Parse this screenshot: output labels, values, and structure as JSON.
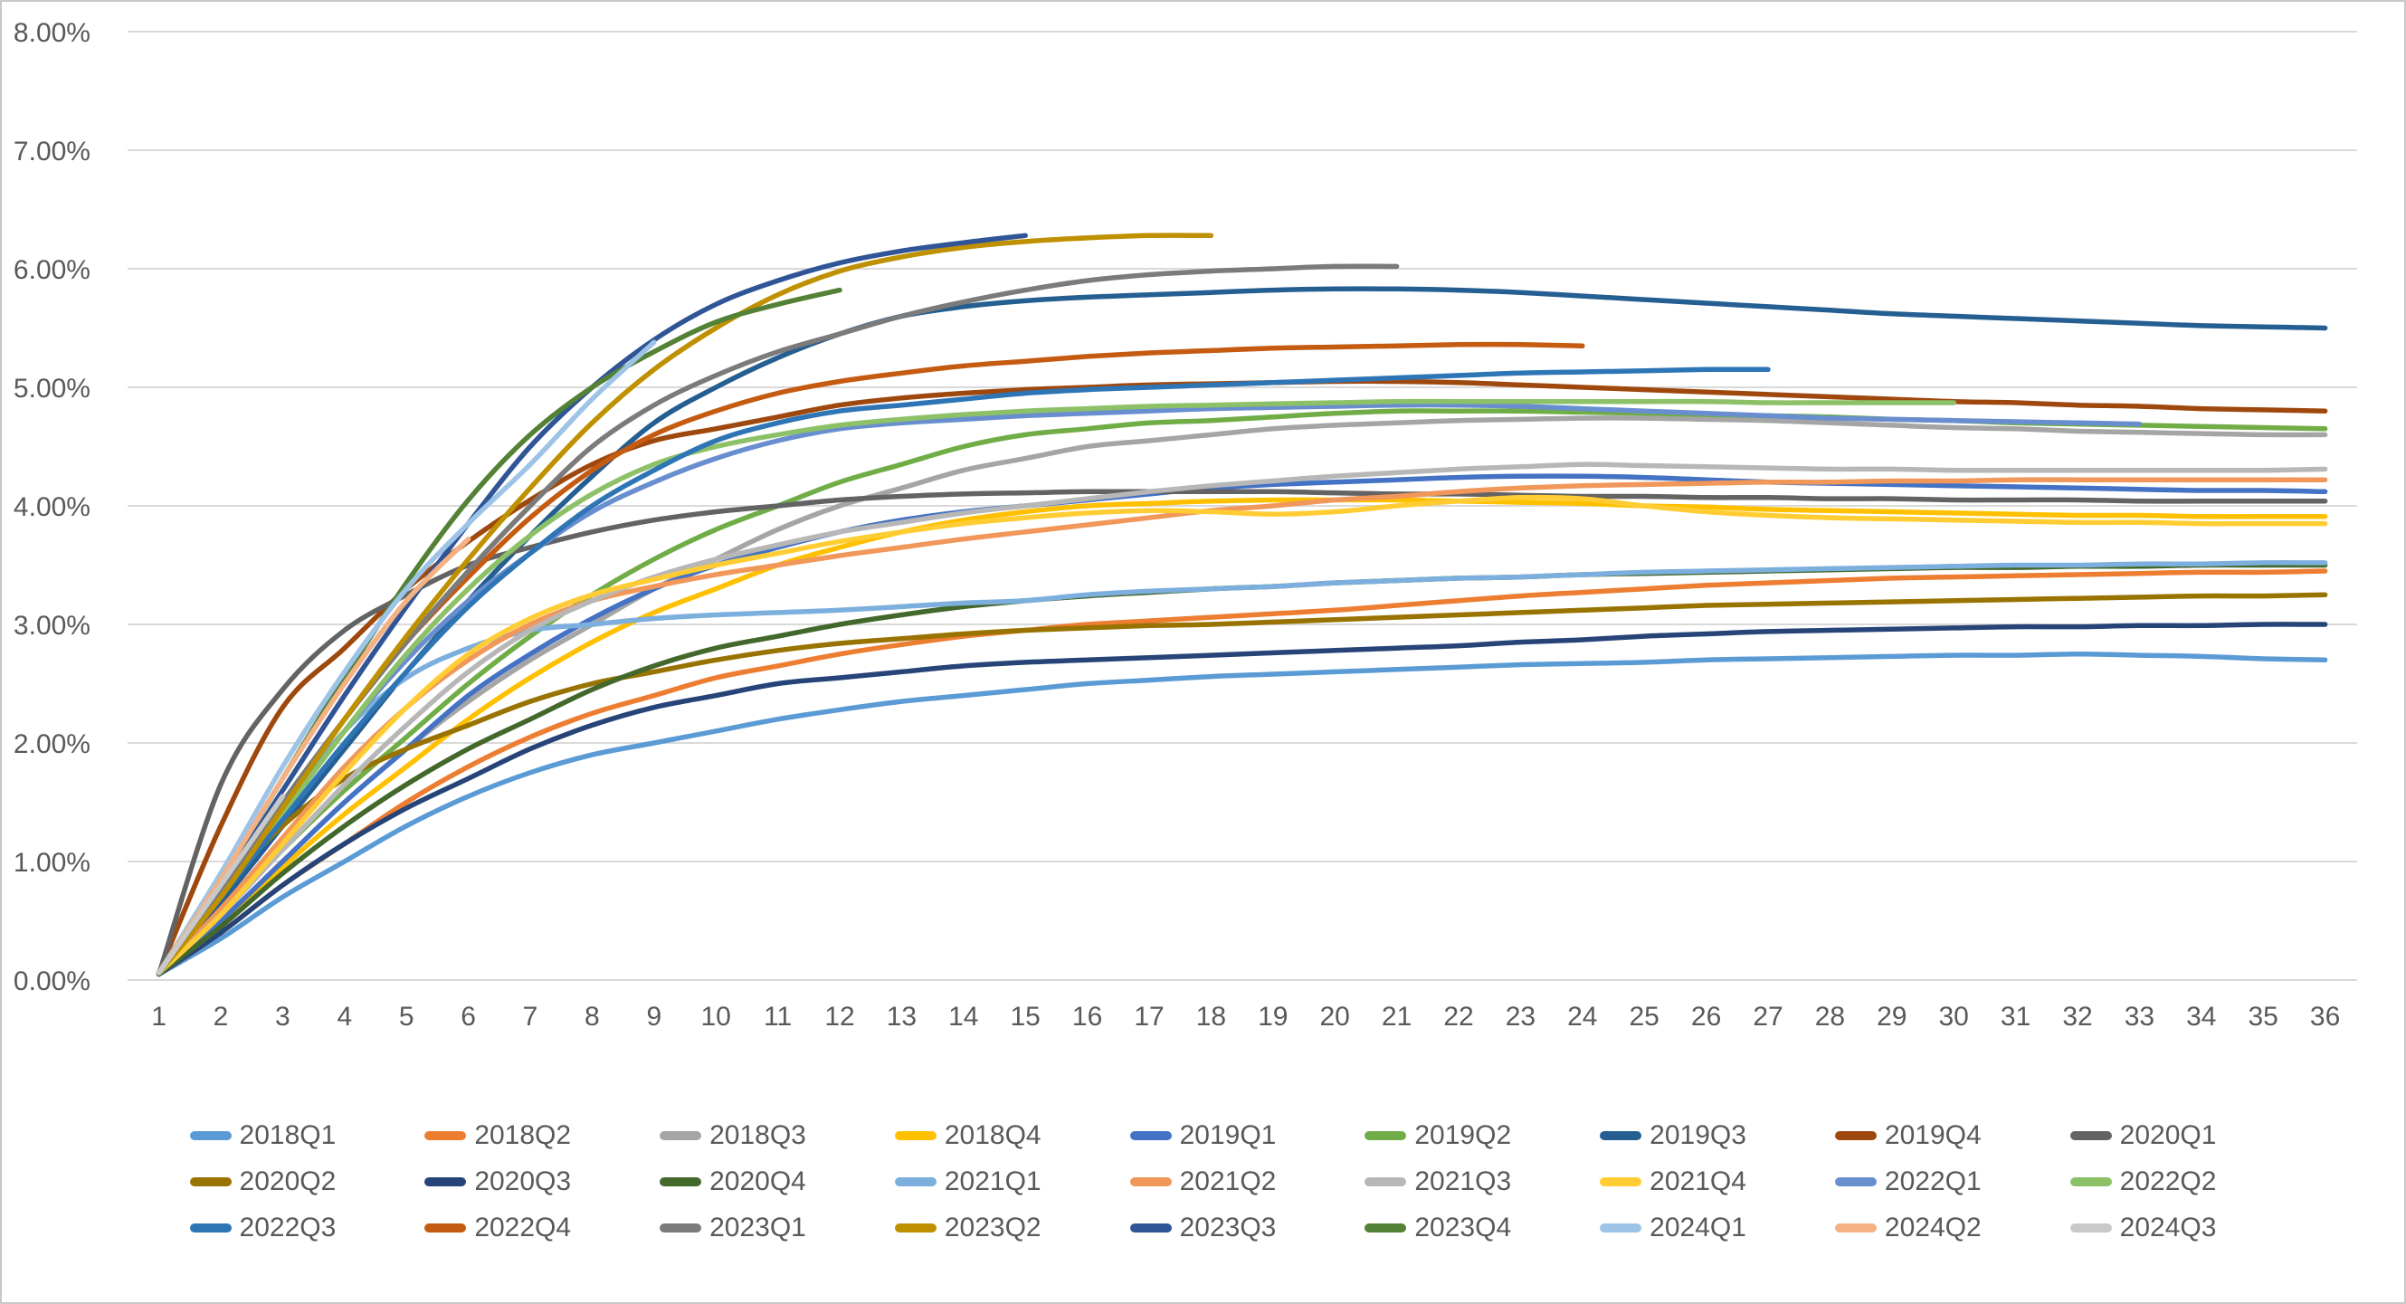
{
  "window": {
    "background": "#FFFFFF",
    "border_color": "#C8C8C8"
  },
  "chart_data": {
    "type": "line",
    "title": "",
    "xlabel": "",
    "ylabel": "",
    "x_start": 1,
    "x_ticks": [
      1,
      2,
      3,
      4,
      5,
      6,
      7,
      8,
      9,
      10,
      11,
      12,
      13,
      14,
      15,
      16,
      17,
      18,
      19,
      20,
      21,
      22,
      23,
      24,
      25,
      26,
      27,
      28,
      29,
      30,
      31,
      32,
      33,
      34,
      35,
      36
    ],
    "y_ticks": [
      "0.00%",
      "1.00%",
      "2.00%",
      "3.00%",
      "4.00%",
      "5.00%",
      "6.00%",
      "7.00%",
      "8.00%"
    ],
    "ylim": [
      0,
      8
    ],
    "grid": "horizontal",
    "gridline_color": "#D9D9D9",
    "axis_text_color": "#595959",
    "legend_position": "bottom",
    "legend_items_per_row": 9,
    "series": [
      {
        "name": "2018Q1",
        "color": "#5B9BD5",
        "values": [
          0.05,
          0.35,
          0.7,
          1.0,
          1.3,
          1.55,
          1.75,
          1.9,
          2.0,
          2.1,
          2.2,
          2.28,
          2.35,
          2.4,
          2.45,
          2.5,
          2.53,
          2.56,
          2.58,
          2.6,
          2.62,
          2.64,
          2.66,
          2.67,
          2.68,
          2.7,
          2.71,
          2.72,
          2.73,
          2.74,
          2.74,
          2.75,
          2.74,
          2.73,
          2.71,
          2.7
        ]
      },
      {
        "name": "2018Q2",
        "color": "#ED7D31",
        "values": [
          0.05,
          0.4,
          0.8,
          1.15,
          1.5,
          1.8,
          2.05,
          2.25,
          2.4,
          2.55,
          2.65,
          2.75,
          2.83,
          2.9,
          2.95,
          3.0,
          3.03,
          3.06,
          3.09,
          3.12,
          3.16,
          3.2,
          3.24,
          3.27,
          3.3,
          3.33,
          3.35,
          3.37,
          3.39,
          3.4,
          3.41,
          3.42,
          3.43,
          3.44,
          3.44,
          3.45
        ]
      },
      {
        "name": "2018Q3",
        "color": "#A5A5A5",
        "values": [
          0.05,
          0.5,
          1.0,
          1.5,
          1.95,
          2.35,
          2.7,
          3.0,
          3.3,
          3.55,
          3.8,
          4.0,
          4.15,
          4.3,
          4.4,
          4.5,
          4.55,
          4.6,
          4.65,
          4.68,
          4.7,
          4.72,
          4.73,
          4.74,
          4.74,
          4.73,
          4.72,
          4.7,
          4.68,
          4.66,
          4.65,
          4.63,
          4.62,
          4.61,
          4.6,
          4.6
        ]
      },
      {
        "name": "2018Q4",
        "color": "#FFC000",
        "values": [
          0.05,
          0.45,
          0.95,
          1.4,
          1.8,
          2.2,
          2.55,
          2.85,
          3.1,
          3.3,
          3.5,
          3.65,
          3.78,
          3.88,
          3.95,
          4.0,
          4.02,
          4.04,
          4.05,
          4.05,
          4.05,
          4.04,
          4.03,
          4.02,
          4.0,
          3.99,
          3.97,
          3.96,
          3.95,
          3.94,
          3.93,
          3.92,
          3.92,
          3.91,
          3.91,
          3.91
        ]
      },
      {
        "name": "2019Q1",
        "color": "#4472C4",
        "values": [
          0.05,
          0.5,
          1.0,
          1.5,
          1.95,
          2.4,
          2.75,
          3.05,
          3.3,
          3.5,
          3.65,
          3.78,
          3.88,
          3.95,
          4.0,
          4.05,
          4.1,
          4.15,
          4.18,
          4.2,
          4.22,
          4.24,
          4.25,
          4.25,
          4.24,
          4.22,
          4.2,
          4.19,
          4.18,
          4.17,
          4.16,
          4.15,
          4.14,
          4.13,
          4.13,
          4.12
        ]
      },
      {
        "name": "2019Q2",
        "color": "#70AD47",
        "values": [
          0.05,
          0.55,
          1.1,
          1.6,
          2.05,
          2.5,
          2.9,
          3.25,
          3.55,
          3.8,
          4.0,
          4.2,
          4.35,
          4.5,
          4.6,
          4.65,
          4.7,
          4.72,
          4.75,
          4.78,
          4.8,
          4.8,
          4.8,
          4.79,
          4.78,
          4.77,
          4.76,
          4.75,
          4.73,
          4.72,
          4.7,
          4.69,
          4.68,
          4.67,
          4.66,
          4.65
        ]
      },
      {
        "name": "2019Q3",
        "color": "#255E91",
        "values": [
          0.05,
          0.65,
          1.3,
          1.95,
          2.6,
          3.2,
          3.75,
          4.25,
          4.7,
          5.0,
          5.25,
          5.45,
          5.6,
          5.68,
          5.73,
          5.76,
          5.78,
          5.8,
          5.82,
          5.83,
          5.83,
          5.82,
          5.8,
          5.77,
          5.74,
          5.71,
          5.68,
          5.65,
          5.62,
          5.6,
          5.58,
          5.56,
          5.54,
          5.52,
          5.51,
          5.5
        ]
      },
      {
        "name": "2019Q4",
        "color": "#9E480E",
        "values": [
          0.06,
          1.3,
          2.3,
          2.8,
          3.3,
          3.7,
          4.05,
          4.35,
          4.55,
          4.65,
          4.75,
          4.85,
          4.91,
          4.95,
          4.98,
          5.0,
          5.02,
          5.03,
          5.04,
          5.05,
          5.05,
          5.04,
          5.02,
          5.0,
          4.98,
          4.96,
          4.94,
          4.92,
          4.9,
          4.88,
          4.87,
          4.85,
          4.84,
          4.82,
          4.81,
          4.8
        ]
      },
      {
        "name": "2020Q1",
        "color": "#636363",
        "values": [
          0.05,
          1.65,
          2.45,
          2.95,
          3.25,
          3.5,
          3.65,
          3.78,
          3.88,
          3.95,
          4.0,
          4.05,
          4.08,
          4.1,
          4.11,
          4.12,
          4.12,
          4.12,
          4.12,
          4.11,
          4.1,
          4.1,
          4.09,
          4.08,
          4.08,
          4.07,
          4.07,
          4.06,
          4.06,
          4.05,
          4.05,
          4.05,
          4.04,
          4.04,
          4.04,
          4.04
        ]
      },
      {
        "name": "2020Q2",
        "color": "#997300",
        "values": [
          0.05,
          0.75,
          1.3,
          1.7,
          1.95,
          2.15,
          2.35,
          2.5,
          2.6,
          2.7,
          2.78,
          2.84,
          2.88,
          2.92,
          2.95,
          2.97,
          2.99,
          3.0,
          3.02,
          3.04,
          3.06,
          3.08,
          3.1,
          3.12,
          3.14,
          3.16,
          3.17,
          3.18,
          3.19,
          3.2,
          3.21,
          3.22,
          3.23,
          3.24,
          3.24,
          3.25
        ]
      },
      {
        "name": "2020Q3",
        "color": "#264478",
        "values": [
          0.05,
          0.4,
          0.8,
          1.15,
          1.45,
          1.7,
          1.95,
          2.15,
          2.3,
          2.4,
          2.5,
          2.55,
          2.6,
          2.65,
          2.68,
          2.7,
          2.72,
          2.74,
          2.76,
          2.78,
          2.8,
          2.82,
          2.85,
          2.87,
          2.9,
          2.92,
          2.94,
          2.95,
          2.96,
          2.97,
          2.98,
          2.98,
          2.99,
          2.99,
          3.0,
          3.0
        ]
      },
      {
        "name": "2020Q4",
        "color": "#43682B",
        "values": [
          0.05,
          0.45,
          0.9,
          1.3,
          1.65,
          1.95,
          2.2,
          2.45,
          2.65,
          2.8,
          2.9,
          3.0,
          3.08,
          3.15,
          3.2,
          3.24,
          3.27,
          3.3,
          3.32,
          3.35,
          3.37,
          3.39,
          3.4,
          3.42,
          3.43,
          3.44,
          3.45,
          3.46,
          3.47,
          3.48,
          3.48,
          3.49,
          3.49,
          3.5,
          3.5,
          3.5
        ]
      },
      {
        "name": "2021Q1",
        "color": "#7CAFDD",
        "values": [
          0.06,
          0.75,
          1.45,
          2.1,
          2.55,
          2.8,
          2.95,
          3.0,
          3.05,
          3.08,
          3.1,
          3.12,
          3.15,
          3.18,
          3.2,
          3.25,
          3.28,
          3.3,
          3.32,
          3.35,
          3.37,
          3.39,
          3.4,
          3.42,
          3.44,
          3.45,
          3.46,
          3.47,
          3.48,
          3.49,
          3.5,
          3.5,
          3.51,
          3.51,
          3.52,
          3.52
        ]
      },
      {
        "name": "2021Q2",
        "color": "#F1975A",
        "values": [
          0.06,
          0.6,
          1.2,
          1.8,
          2.3,
          2.7,
          3.0,
          3.2,
          3.32,
          3.42,
          3.5,
          3.58,
          3.65,
          3.72,
          3.78,
          3.84,
          3.9,
          3.96,
          4.0,
          4.05,
          4.08,
          4.12,
          4.15,
          4.17,
          4.18,
          4.19,
          4.2,
          4.2,
          4.21,
          4.21,
          4.22,
          4.22,
          4.22,
          4.22,
          4.22,
          4.22
        ]
      },
      {
        "name": "2021Q3",
        "color": "#B7B7B7",
        "values": [
          0.06,
          0.55,
          1.1,
          1.65,
          2.15,
          2.6,
          2.95,
          3.2,
          3.4,
          3.55,
          3.67,
          3.78,
          3.86,
          3.94,
          4.0,
          4.06,
          4.12,
          4.17,
          4.21,
          4.25,
          4.28,
          4.31,
          4.33,
          4.35,
          4.34,
          4.33,
          4.32,
          4.31,
          4.31,
          4.3,
          4.3,
          4.3,
          4.3,
          4.3,
          4.3,
          4.31
        ]
      },
      {
        "name": "2021Q4",
        "color": "#FFCD33",
        "values": [
          0.06,
          0.55,
          1.15,
          1.75,
          2.3,
          2.75,
          3.05,
          3.25,
          3.38,
          3.5,
          3.6,
          3.7,
          3.78,
          3.85,
          3.9,
          3.94,
          3.96,
          3.95,
          3.93,
          3.95,
          4.0,
          4.04,
          4.07,
          4.06,
          4.0,
          3.95,
          3.92,
          3.9,
          3.89,
          3.88,
          3.87,
          3.86,
          3.86,
          3.85,
          3.85,
          3.85
        ]
      },
      {
        "name": "2022Q1",
        "color": "#698ED0",
        "values": [
          0.06,
          0.7,
          1.4,
          2.1,
          2.7,
          3.2,
          3.6,
          3.95,
          4.2,
          4.4,
          4.55,
          4.65,
          4.7,
          4.73,
          4.76,
          4.78,
          4.8,
          4.82,
          4.83,
          4.84,
          4.85,
          4.85,
          4.84,
          4.82,
          4.8,
          4.78,
          4.76,
          4.74,
          4.73,
          4.72,
          4.71,
          4.7,
          4.69
        ]
      },
      {
        "name": "2022Q2",
        "color": "#8CC168",
        "values": [
          0.06,
          0.7,
          1.4,
          2.1,
          2.75,
          3.3,
          3.75,
          4.1,
          4.35,
          4.5,
          4.6,
          4.68,
          4.73,
          4.77,
          4.8,
          4.82,
          4.84,
          4.85,
          4.86,
          4.87,
          4.88,
          4.88,
          4.88,
          4.88,
          4.88,
          4.88,
          4.87,
          4.87,
          4.87,
          4.87
        ]
      },
      {
        "name": "2022Q3",
        "color": "#2E75B6",
        "values": [
          0.06,
          0.7,
          1.35,
          2.0,
          2.6,
          3.15,
          3.6,
          4.0,
          4.3,
          4.55,
          4.7,
          4.8,
          4.85,
          4.9,
          4.95,
          4.98,
          5.0,
          5.02,
          5.04,
          5.06,
          5.08,
          5.1,
          5.12,
          5.13,
          5.14,
          5.15,
          5.15
        ]
      },
      {
        "name": "2022Q4",
        "color": "#C55A11",
        "values": [
          0.06,
          0.75,
          1.5,
          2.2,
          2.85,
          3.4,
          3.9,
          4.3,
          4.6,
          4.8,
          4.95,
          5.05,
          5.12,
          5.18,
          5.22,
          5.26,
          5.29,
          5.31,
          5.33,
          5.34,
          5.35,
          5.36,
          5.36,
          5.35
        ]
      },
      {
        "name": "2023Q1",
        "color": "#7B7B7B",
        "values": [
          0.06,
          0.75,
          1.5,
          2.2,
          2.85,
          3.45,
          4.0,
          4.5,
          4.85,
          5.1,
          5.3,
          5.45,
          5.6,
          5.72,
          5.82,
          5.9,
          5.95,
          5.98,
          6.0,
          6.02,
          6.02
        ]
      },
      {
        "name": "2023Q2",
        "color": "#BF9000",
        "values": [
          0.06,
          0.7,
          1.45,
          2.2,
          2.9,
          3.55,
          4.15,
          4.7,
          5.15,
          5.5,
          5.78,
          5.98,
          6.1,
          6.18,
          6.23,
          6.26,
          6.28,
          6.28
        ]
      },
      {
        "name": "2023Q3",
        "color": "#2F5597",
        "values": [
          0.06,
          0.8,
          1.6,
          2.4,
          3.15,
          3.85,
          4.5,
          5.0,
          5.4,
          5.7,
          5.9,
          6.05,
          6.15,
          6.22,
          6.28
        ]
      },
      {
        "name": "2023Q4",
        "color": "#538135",
        "values": [
          0.06,
          0.85,
          1.7,
          2.55,
          3.35,
          4.05,
          4.6,
          5.0,
          5.3,
          5.55,
          5.7,
          5.82
        ]
      },
      {
        "name": "2024Q1",
        "color": "#9DC3E6",
        "values": [
          0.06,
          0.9,
          1.8,
          2.6,
          3.3,
          3.85,
          4.35,
          4.9,
          5.38
        ]
      },
      {
        "name": "2024Q2",
        "color": "#F4B183",
        "values": [
          0.06,
          0.85,
          1.7,
          2.5,
          3.2,
          3.72
        ]
      },
      {
        "name": "2024Q3",
        "color": "#C9C9C9",
        "values": [
          0.06,
          0.8,
          1.55
        ]
      }
    ]
  }
}
